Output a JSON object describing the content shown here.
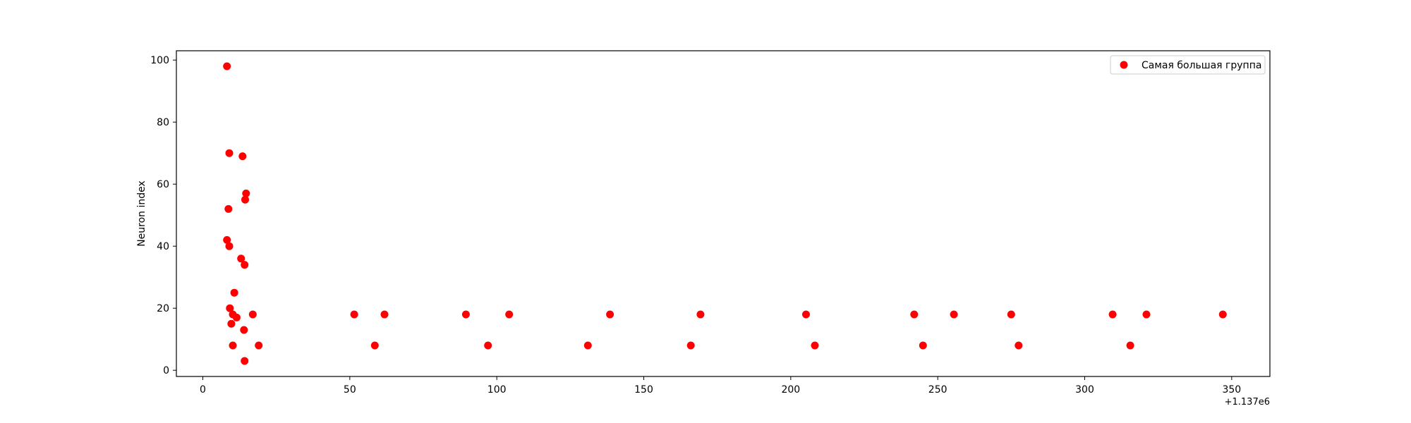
{
  "chart_data": {
    "type": "scatter",
    "title": "",
    "xlabel": "",
    "ylabel": "Neuron index",
    "x_offset_label": "+1.137e6",
    "xlim": [
      -9,
      363
    ],
    "ylim": [
      -2,
      103
    ],
    "xticks": [
      0,
      50,
      100,
      150,
      200,
      250,
      300,
      350
    ],
    "yticks": [
      0,
      20,
      40,
      60,
      80,
      100
    ],
    "grid": false,
    "legend_position": "top-right",
    "color": "#ff0000",
    "series": [
      {
        "name": "Самая большая группа",
        "points": [
          {
            "x": 8.2,
            "y": 98
          },
          {
            "x": 9.0,
            "y": 70
          },
          {
            "x": 13.5,
            "y": 69
          },
          {
            "x": 14.7,
            "y": 57
          },
          {
            "x": 14.4,
            "y": 55
          },
          {
            "x": 8.7,
            "y": 52
          },
          {
            "x": 8.2,
            "y": 42
          },
          {
            "x": 9.0,
            "y": 40
          },
          {
            "x": 13.0,
            "y": 36
          },
          {
            "x": 14.2,
            "y": 34
          },
          {
            "x": 10.7,
            "y": 25
          },
          {
            "x": 9.2,
            "y": 20
          },
          {
            "x": 10.2,
            "y": 18
          },
          {
            "x": 11.5,
            "y": 17
          },
          {
            "x": 17.0,
            "y": 18
          },
          {
            "x": 9.7,
            "y": 15
          },
          {
            "x": 14.0,
            "y": 13
          },
          {
            "x": 10.2,
            "y": 8
          },
          {
            "x": 19.0,
            "y": 8
          },
          {
            "x": 14.2,
            "y": 3
          },
          {
            "x": 51.5,
            "y": 18
          },
          {
            "x": 61.8,
            "y": 18
          },
          {
            "x": 58.5,
            "y": 8
          },
          {
            "x": 89.5,
            "y": 18
          },
          {
            "x": 104.2,
            "y": 18
          },
          {
            "x": 97.0,
            "y": 8
          },
          {
            "x": 131.0,
            "y": 8
          },
          {
            "x": 138.5,
            "y": 18
          },
          {
            "x": 166.0,
            "y": 8
          },
          {
            "x": 169.3,
            "y": 18
          },
          {
            "x": 205.2,
            "y": 18
          },
          {
            "x": 208.2,
            "y": 8
          },
          {
            "x": 242.0,
            "y": 18
          },
          {
            "x": 245.0,
            "y": 8
          },
          {
            "x": 255.5,
            "y": 18
          },
          {
            "x": 275.0,
            "y": 18
          },
          {
            "x": 277.5,
            "y": 8
          },
          {
            "x": 309.5,
            "y": 18
          },
          {
            "x": 315.5,
            "y": 8
          },
          {
            "x": 321.0,
            "y": 18
          },
          {
            "x": 347.0,
            "y": 18
          }
        ]
      }
    ]
  }
}
